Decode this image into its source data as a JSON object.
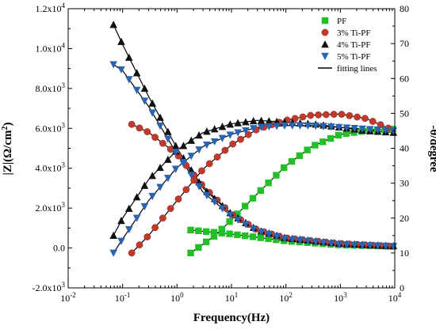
{
  "chart_data": {
    "type": "scatter",
    "xlabel": "Frequency(Hz)",
    "ylabel_left": {
      "base": "|Z|(Ω/cm",
      "sup": "2",
      "tail": ")"
    },
    "ylabel_right": "-θ/degree",
    "x_scale": "log",
    "xlim": [
      0.01,
      10000
    ],
    "x_ticks": [
      {
        "value": 0.01,
        "base": "10",
        "exp": "-2"
      },
      {
        "value": 0.1,
        "base": "10",
        "exp": "-1"
      },
      {
        "value": 1,
        "base": "10",
        "exp": "0"
      },
      {
        "value": 10,
        "base": "10",
        "exp": "1"
      },
      {
        "value": 100,
        "base": "10",
        "exp": "2"
      },
      {
        "value": 1000,
        "base": "10",
        "exp": "3"
      },
      {
        "value": 10000,
        "base": "10",
        "exp": "4"
      }
    ],
    "ylim_left": [
      -2000,
      12000
    ],
    "y_left_ticks": [
      {
        "value": -2000,
        "mant": "-2.0x10",
        "exp": "3"
      },
      {
        "value": 0,
        "mant": "0.0",
        "exp": ""
      },
      {
        "value": 2000,
        "mant": "2.0x10",
        "exp": "3"
      },
      {
        "value": 4000,
        "mant": "4.0x10",
        "exp": "3"
      },
      {
        "value": 6000,
        "mant": "6.0x10",
        "exp": "3"
      },
      {
        "value": 8000,
        "mant": "8.0x10",
        "exp": "3"
      },
      {
        "value": 10000,
        "mant": "1.0x10",
        "exp": "4"
      },
      {
        "value": 12000,
        "mant": "1.2x10",
        "exp": "4"
      }
    ],
    "ylim_right": [
      0,
      80
    ],
    "y_right_ticks": [
      "0",
      "10",
      "20",
      "30",
      "40",
      "50",
      "60",
      "70",
      "80"
    ],
    "legend_position": "top-right",
    "legend": [
      {
        "label": "PF",
        "marker": "square",
        "color": "#22c026"
      },
      {
        "label": "3% Ti-PF",
        "marker": "circle",
        "color": "#c0392b"
      },
      {
        "label": "4% Ti-PF",
        "marker": "triangle-up",
        "color": "#111111"
      },
      {
        "label": "5% Ti-PF",
        "marker": "triangle-down",
        "color": "#2a64b0"
      },
      {
        "label": "fitting lines",
        "marker": "line",
        "color": "#000000"
      }
    ],
    "series": [
      {
        "key": "pf_mod",
        "axis": "left",
        "marker": "square",
        "color": "#22c026",
        "points": [
          [
            1.78,
            900
          ],
          [
            10,
            700
          ],
          [
            100,
            350
          ],
          [
            1000,
            150
          ],
          [
            10000,
            80
          ]
        ]
      },
      {
        "key": "pf_phase",
        "axis": "right",
        "marker": "square",
        "color": "#22c026",
        "points": [
          [
            1.78,
            10
          ],
          [
            5,
            15
          ],
          [
            10,
            19.5
          ],
          [
            30,
            27
          ],
          [
            100,
            35
          ],
          [
            300,
            40.5
          ],
          [
            1000,
            44
          ],
          [
            3000,
            45
          ],
          [
            10000,
            45.5
          ]
        ]
      },
      {
        "key": "ti3_mod",
        "axis": "left",
        "marker": "circle",
        "color": "#c0392b",
        "points": [
          [
            0.147,
            6200
          ],
          [
            0.3,
            5800
          ],
          [
            1,
            4700
          ],
          [
            3,
            3100
          ],
          [
            10,
            1700
          ],
          [
            30,
            900
          ],
          [
            100,
            500
          ],
          [
            1000,
            220
          ],
          [
            10000,
            80
          ]
        ]
      },
      {
        "key": "ti3_phase",
        "axis": "right",
        "marker": "circle",
        "color": "#c0392b",
        "points": [
          [
            0.147,
            10
          ],
          [
            0.3,
            15
          ],
          [
            1,
            25
          ],
          [
            3,
            34
          ],
          [
            10,
            41
          ],
          [
            30,
            45.5
          ],
          [
            100,
            48
          ],
          [
            300,
            49.5
          ],
          [
            1000,
            49.8
          ],
          [
            3000,
            48.5
          ],
          [
            10000,
            45
          ]
        ]
      },
      {
        "key": "ti4_mod",
        "axis": "left",
        "marker": "triangle-up",
        "color": "#111111",
        "points": [
          [
            0.068,
            11200
          ],
          [
            0.1,
            10200
          ],
          [
            0.3,
            7600
          ],
          [
            1,
            5000
          ],
          [
            3,
            3000
          ],
          [
            10,
            1700
          ],
          [
            30,
            900
          ],
          [
            100,
            500
          ],
          [
            1000,
            220
          ],
          [
            10000,
            100
          ]
        ]
      },
      {
        "key": "ti4_phase",
        "axis": "right",
        "marker": "triangle-up",
        "color": "#111111",
        "points": [
          [
            0.068,
            15
          ],
          [
            0.1,
            20
          ],
          [
            0.3,
            31
          ],
          [
            1,
            39.5
          ],
          [
            3,
            44.5
          ],
          [
            10,
            47
          ],
          [
            30,
            48
          ],
          [
            100,
            47.5
          ],
          [
            300,
            47
          ],
          [
            1000,
            46
          ],
          [
            3000,
            45
          ],
          [
            10000,
            44.5
          ]
        ]
      },
      {
        "key": "ti5_mod",
        "axis": "left",
        "marker": "triangle-down",
        "color": "#2a64b0",
        "points": [
          [
            0.068,
            9200
          ],
          [
            0.1,
            8900
          ],
          [
            0.3,
            7100
          ],
          [
            1,
            4700
          ],
          [
            3,
            2800
          ],
          [
            10,
            1600
          ],
          [
            30,
            850
          ],
          [
            100,
            450
          ],
          [
            1000,
            180
          ],
          [
            10000,
            80
          ]
        ]
      },
      {
        "key": "ti5_phase",
        "axis": "right",
        "marker": "triangle-down",
        "color": "#2a64b0",
        "points": [
          [
            0.068,
            10
          ],
          [
            0.1,
            14
          ],
          [
            0.3,
            25
          ],
          [
            1,
            34.5
          ],
          [
            3,
            40.5
          ],
          [
            10,
            44
          ],
          [
            30,
            46
          ],
          [
            100,
            46.5
          ],
          [
            300,
            46.5
          ],
          [
            1000,
            46
          ],
          [
            3000,
            45.5
          ],
          [
            10000,
            45
          ]
        ]
      }
    ]
  }
}
